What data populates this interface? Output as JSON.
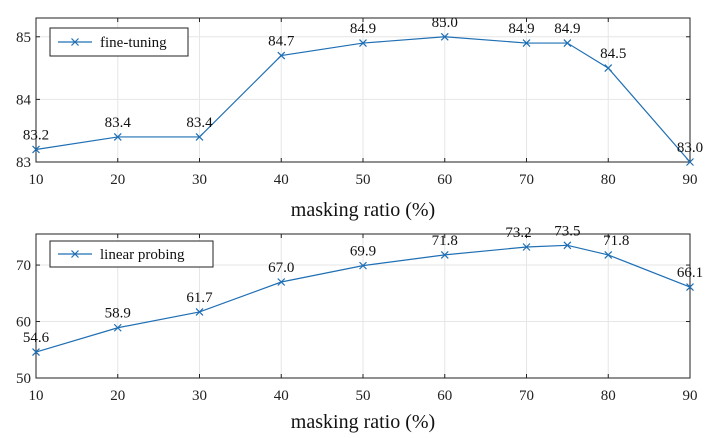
{
  "chart_data": [
    {
      "type": "line",
      "title": "",
      "xlabel": "masking ratio (%)",
      "ylabel": "",
      "x": [
        10,
        20,
        30,
        40,
        50,
        60,
        70,
        75,
        80,
        90
      ],
      "xlim": [
        10,
        90
      ],
      "xticks": [
        10,
        20,
        30,
        40,
        50,
        60,
        70,
        80,
        90
      ],
      "ylim": [
        83,
        85.3
      ],
      "yticks": [
        83,
        84,
        85
      ],
      "grid": true,
      "legend_position": "top-left",
      "series": [
        {
          "name": "fine-tuning",
          "values": [
            83.2,
            83.4,
            83.4,
            84.7,
            84.9,
            85.0,
            84.9,
            84.9,
            84.5,
            83.0
          ],
          "labels": [
            "83.2",
            "83.4",
            "83.4",
            "84.7",
            "84.9",
            "85.0",
            "84.9",
            "84.9",
            "84.5",
            "83.0"
          ],
          "color": "#1f6fb4",
          "marker": "x"
        }
      ]
    },
    {
      "type": "line",
      "title": "",
      "xlabel": "masking ratio (%)",
      "ylabel": "",
      "x": [
        10,
        20,
        30,
        40,
        50,
        60,
        70,
        75,
        80,
        90
      ],
      "xlim": [
        10,
        90
      ],
      "xticks": [
        10,
        20,
        30,
        40,
        50,
        60,
        70,
        80,
        90
      ],
      "ylim": [
        50,
        75.5
      ],
      "yticks": [
        50,
        60,
        70
      ],
      "grid": true,
      "legend_position": "top-left",
      "series": [
        {
          "name": "linear probing",
          "values": [
            54.6,
            58.9,
            61.7,
            67.0,
            69.9,
            71.8,
            73.2,
            73.5,
            71.8,
            66.1
          ],
          "labels": [
            "54.6",
            "58.9",
            "61.7",
            "67.0",
            "69.9",
            "71.8",
            "73.2",
            "73.5",
            "71.8",
            "66.1"
          ],
          "color": "#1f6fb4",
          "marker": "x"
        }
      ]
    }
  ]
}
